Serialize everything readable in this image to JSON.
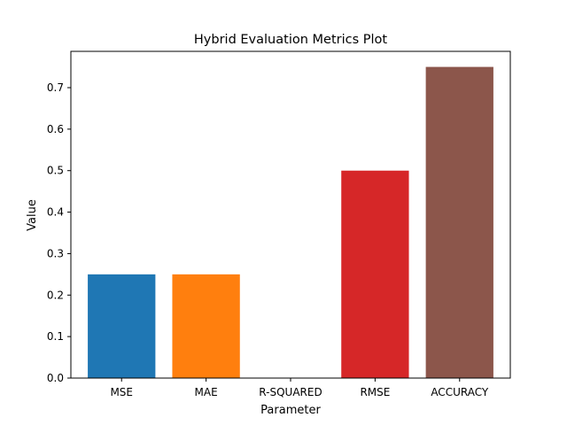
{
  "chart_data": {
    "type": "bar",
    "title": "Hybrid Evaluation Metrics Plot",
    "xlabel": "Parameter",
    "ylabel": "Value",
    "categories": [
      "MSE",
      "MAE",
      "R-SQUARED",
      "RMSE",
      "ACCURACY"
    ],
    "values": [
      0.25,
      0.25,
      0.0,
      0.5,
      0.75
    ],
    "colors": [
      "#1f77b4",
      "#ff7f0e",
      "#2ca02c",
      "#d62728",
      "#8c564b"
    ],
    "ylim": [
      0,
      0.7875
    ],
    "yticks": [
      0.0,
      0.1,
      0.2,
      0.3,
      0.4,
      0.5,
      0.6,
      0.7
    ],
    "ytick_labels": [
      "0.0",
      "0.1",
      "0.2",
      "0.3",
      "0.4",
      "0.5",
      "0.6",
      "0.7"
    ],
    "grid": false,
    "legend": "none"
  }
}
